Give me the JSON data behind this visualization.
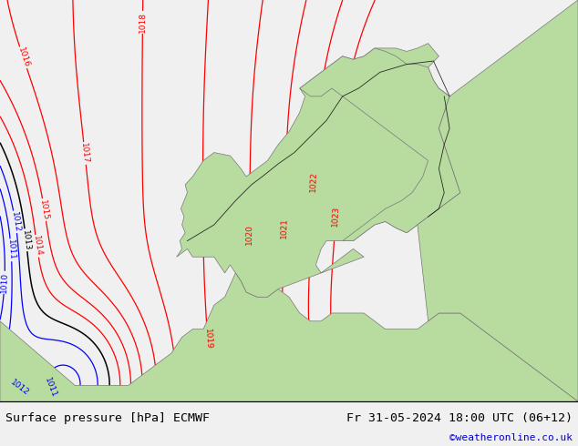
{
  "title_left": "Surface pressure [hPa] ECMWF",
  "title_right": "Fr 31-05-2024 18:00 UTC (06+12)",
  "credit": "©weatheronline.co.uk",
  "credit_color": "#0000cc",
  "background_color": "#c8d4e0",
  "land_color": "#b8dba0",
  "figsize": [
    6.34,
    4.9
  ],
  "dpi": 100,
  "bottom_bar_color": "#f0f0f0",
  "title_fontsize": 9.5,
  "credit_fontsize": 8
}
